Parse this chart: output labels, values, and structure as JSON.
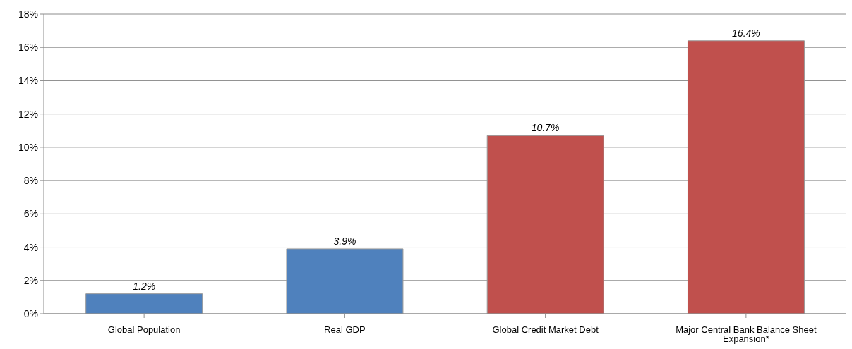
{
  "chart_data": {
    "type": "bar",
    "categories": [
      "Global Population",
      "Real GDP",
      "Global Credit Market Debt",
      "Major Central Bank Balance Sheet Expansion*"
    ],
    "values": [
      1.2,
      3.9,
      10.7,
      16.4
    ],
    "colors": [
      "#4f81bd",
      "#4f81bd",
      "#c0504d",
      "#c0504d"
    ],
    "value_labels": [
      "1.2%",
      "3.9%",
      "10.7%",
      "16.4%"
    ],
    "ylim": [
      0,
      18
    ],
    "yticks": [
      {
        "value": 0,
        "label": "0%"
      },
      {
        "value": 2,
        "label": "2%"
      },
      {
        "value": 4,
        "label": "4%"
      },
      {
        "value": 6,
        "label": "6%"
      },
      {
        "value": 8,
        "label": "8%"
      },
      {
        "value": 10,
        "label": "10%"
      },
      {
        "value": 12,
        "label": "12%"
      },
      {
        "value": 14,
        "label": "14%"
      },
      {
        "value": 16,
        "label": "16%"
      },
      {
        "value": 18,
        "label": "18%"
      }
    ],
    "grid": "y"
  }
}
